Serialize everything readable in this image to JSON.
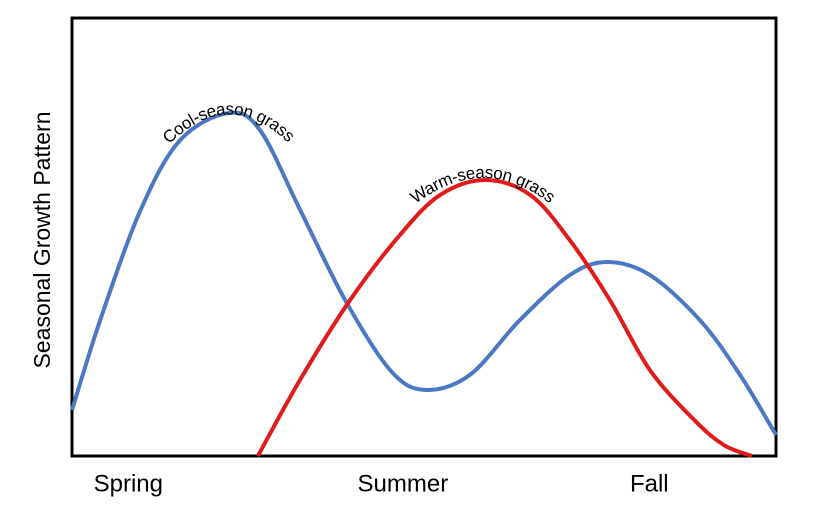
{
  "chart_data": {
    "type": "line",
    "ylabel": "Seasonal Growth Pattern",
    "xlim": [
      0,
      100
    ],
    "ylim": [
      0,
      100
    ],
    "xticks": [
      {
        "value": 8,
        "label": "Spring"
      },
      {
        "value": 47,
        "label": "Summer"
      },
      {
        "value": 82,
        "label": "Fall"
      }
    ],
    "series": [
      {
        "name": "Cool-season grass",
        "color": "#4a78c2",
        "x": [
          0,
          4,
          9.7,
          15.3,
          22.2,
          26.7,
          32.4,
          38.8,
          45.2,
          50.1,
          56.5,
          63.6,
          70.7,
          76.1,
          82.1,
          89.2,
          94.9,
          100
        ],
        "values": [
          10.5,
          31,
          56,
          72,
          78.3,
          74.4,
          56.2,
          35.6,
          19.6,
          15.1,
          18.5,
          31,
          41.3,
          44.3,
          41.3,
          31,
          18.5,
          4.8
        ]
      },
      {
        "name": "Warm-season grass",
        "color": "#e01b1b",
        "x": [
          26.4,
          32.4,
          39.5,
          46.6,
          52.3,
          58.7,
          65.1,
          70.7,
          76.4,
          82.1,
          88.4,
          92.6,
          96.6
        ],
        "values": [
          0,
          17.4,
          35.6,
          50.5,
          59.6,
          63,
          59.6,
          49.3,
          35.6,
          19.6,
          8.2,
          2.5,
          0
        ]
      }
    ]
  }
}
